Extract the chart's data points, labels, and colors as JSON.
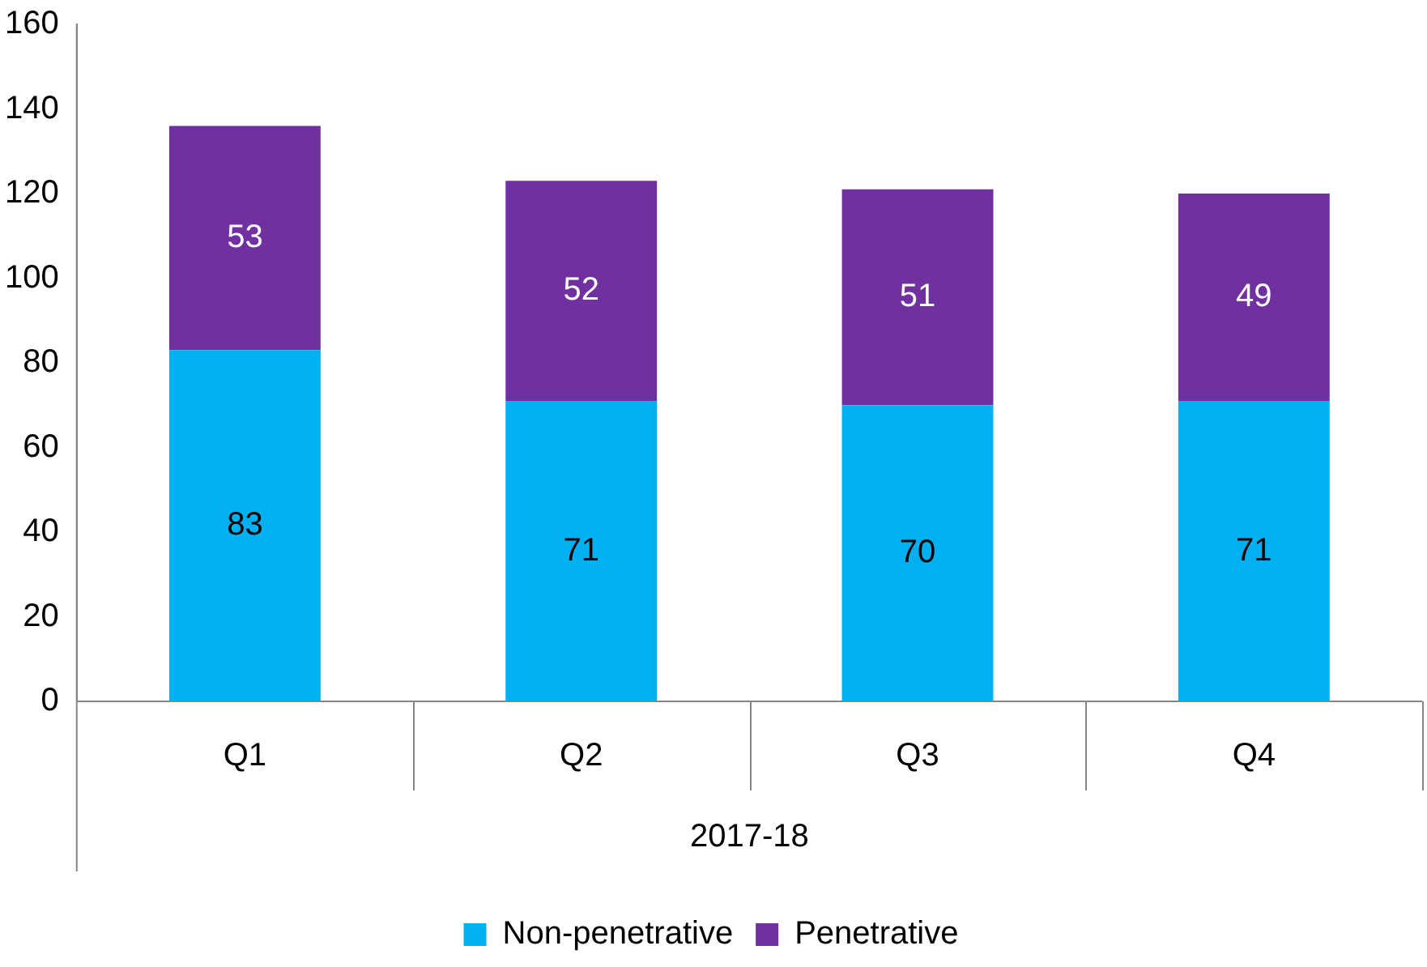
{
  "chart_data": {
    "type": "bar",
    "stacked": true,
    "xlabel": "2017-18",
    "categories": [
      "Q1",
      "Q2",
      "Q3",
      "Q4"
    ],
    "series": [
      {
        "name": "Non-penetrative",
        "color": "#00b0f0",
        "values": [
          83,
          71,
          70,
          71
        ]
      },
      {
        "name": "Penetrative",
        "color": "#7030a0",
        "values": [
          53,
          52,
          51,
          49
        ]
      }
    ],
    "ylim": [
      0,
      160
    ],
    "yticks": [
      0,
      20,
      40,
      60,
      80,
      100,
      120,
      140,
      160
    ],
    "grid": false,
    "legend": "bottom",
    "data_labels": true
  }
}
